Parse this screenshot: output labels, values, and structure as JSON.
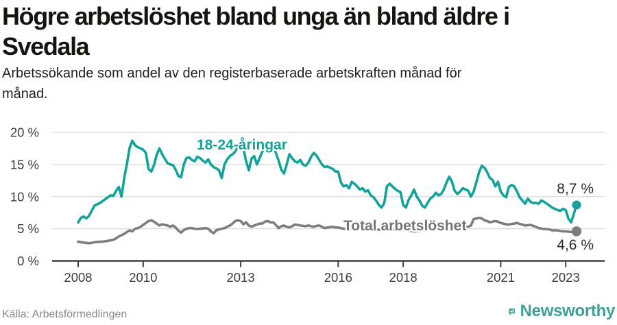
{
  "header": {
    "title_lines": [
      "Högre arbetslöshet bland unga än bland äldre i",
      "Svedala"
    ],
    "subtitle_lines": [
      "Arbetssökande som andel av den registerbaserade arbetskraften månad för",
      "månad."
    ]
  },
  "chart_data": {
    "type": "line",
    "x_unit": "month",
    "x_start": "2008-01",
    "x_end": "2023-05",
    "ylim": [
      0,
      20
    ],
    "grid": "horizontal",
    "yticks": [
      {
        "value": 0,
        "label": "0 %"
      },
      {
        "value": 5,
        "label": "5 %"
      },
      {
        "value": 10,
        "label": "10 %"
      },
      {
        "value": 15,
        "label": "15 %"
      },
      {
        "value": 20,
        "label": "20 %"
      }
    ],
    "xticks": [
      {
        "month_index": 0,
        "label": "2008"
      },
      {
        "month_index": 24,
        "label": "2010"
      },
      {
        "month_index": 60,
        "label": "2013"
      },
      {
        "month_index": 96,
        "label": "2016"
      },
      {
        "month_index": 120,
        "label": "2018"
      },
      {
        "month_index": 156,
        "label": "2021"
      },
      {
        "month_index": 180,
        "label": "2023"
      }
    ],
    "series": [
      {
        "name": "18-24-åringar",
        "color": "#11a39a",
        "end_label": "8,7 %",
        "end_value": 8.7,
        "values": [
          6.0,
          6.7,
          6.9,
          6.6,
          7.0,
          7.8,
          8.6,
          8.8,
          9.0,
          9.3,
          9.6,
          9.9,
          10.2,
          10.1,
          10.9,
          11.5,
          10.0,
          12.9,
          15.1,
          17.6,
          18.7,
          18.0,
          17.7,
          17.5,
          17.3,
          16.8,
          14.3,
          13.9,
          14.9,
          16.5,
          17.5,
          16.6,
          15.9,
          15.2,
          15.0,
          14.9,
          14.2,
          13.2,
          13.0,
          15.0,
          16.0,
          16.1,
          15.7,
          15.5,
          16.2,
          16.0,
          15.6,
          15.3,
          15.8,
          15.0,
          14.6,
          14.4,
          14.1,
          12.9,
          15.0,
          15.8,
          16.3,
          16.6,
          17.0,
          17.8,
          18.4,
          17.5,
          15.5,
          14.1,
          15.9,
          16.3,
          15.0,
          16.0,
          17.0,
          17.8,
          18.3,
          18.4,
          17.9,
          16.8,
          15.6,
          14.2,
          13.6,
          15.0,
          16.6,
          16.0,
          15.5,
          15.3,
          15.7,
          15.0,
          14.8,
          15.3,
          16.2,
          16.8,
          16.4,
          15.7,
          15.0,
          14.6,
          14.7,
          14.5,
          14.3,
          13.9,
          13.9,
          12.2,
          11.6,
          11.8,
          11.3,
          12.3,
          12.0,
          11.6,
          11.1,
          11.3,
          10.8,
          11.0,
          10.2,
          9.9,
          9.4,
          8.7,
          8.3,
          9.0,
          11.6,
          12.0,
          11.6,
          11.2,
          10.9,
          10.7,
          8.7,
          8.3,
          9.5,
          10.2,
          11.1,
          10.0,
          9.4,
          8.6,
          8.3,
          9.0,
          9.7,
          10.0,
          10.6,
          10.2,
          10.4,
          11.1,
          12.2,
          13.1,
          12.3,
          10.9,
          10.4,
          10.8,
          11.3,
          11.1,
          10.9,
          10.0,
          10.8,
          12.2,
          13.8,
          14.8,
          14.5,
          13.8,
          12.9,
          12.6,
          11.6,
          12.3,
          10.8,
          10.2,
          9.9,
          11.5,
          11.8,
          11.6,
          10.8,
          9.9,
          9.4,
          8.9,
          9.7,
          9.2,
          9.0,
          9.0,
          8.9,
          9.4,
          9.2,
          8.9,
          8.6,
          8.3,
          8.1,
          7.9,
          7.8,
          8.1,
          7.9,
          6.6,
          6.0,
          7.3,
          8.7
        ]
      },
      {
        "name": "Total arbetslöshet",
        "color": "#7d7d7d",
        "end_label": "4,6 %",
        "end_value": 4.6,
        "values": [
          3.0,
          2.9,
          2.85,
          2.8,
          2.75,
          2.8,
          2.9,
          2.95,
          3.0,
          3.0,
          3.05,
          3.1,
          3.2,
          3.3,
          3.5,
          3.8,
          4.0,
          4.2,
          4.5,
          4.75,
          4.6,
          5.0,
          5.1,
          5.3,
          5.6,
          5.9,
          6.2,
          6.3,
          6.1,
          5.8,
          5.5,
          5.7,
          5.6,
          5.5,
          5.3,
          5.5,
          5.2,
          4.7,
          4.4,
          4.8,
          5.0,
          5.1,
          5.1,
          5.0,
          4.95,
          5.0,
          5.05,
          5.1,
          5.0,
          4.6,
          4.3,
          4.75,
          4.9,
          5.0,
          5.1,
          5.3,
          5.5,
          5.8,
          6.2,
          6.3,
          6.2,
          5.7,
          6.0,
          5.5,
          5.3,
          5.5,
          5.65,
          5.8,
          5.8,
          6.1,
          6.2,
          6.0,
          6.0,
          5.6,
          5.1,
          5.4,
          5.5,
          5.3,
          5.2,
          5.4,
          5.65,
          5.6,
          5.5,
          5.45,
          5.4,
          5.5,
          5.4,
          5.3,
          5.45,
          5.5,
          5.3,
          5.1,
          5.2,
          5.25,
          5.3,
          5.2,
          5.2,
          5.1,
          5.0,
          5.0,
          4.95,
          5.0,
          5.05,
          5.0,
          4.95,
          4.9,
          4.9,
          4.95,
          5.0,
          4.95,
          4.9,
          4.85,
          4.8,
          4.85,
          4.9,
          4.95,
          4.9,
          4.85,
          4.8,
          4.8,
          4.8,
          4.75,
          4.7,
          4.65,
          4.6,
          4.65,
          4.7,
          4.75,
          4.7,
          4.75,
          4.8,
          4.85,
          4.9,
          4.9,
          4.95,
          5.0,
          5.0,
          5.1,
          5.15,
          5.1,
          5.05,
          5.1,
          5.15,
          5.2,
          5.3,
          5.5,
          6.5,
          6.6,
          6.7,
          6.6,
          6.3,
          6.2,
          6.0,
          6.1,
          6.2,
          6.1,
          5.9,
          5.8,
          5.7,
          5.65,
          5.75,
          5.8,
          5.9,
          5.75,
          5.65,
          5.5,
          5.55,
          5.6,
          5.45,
          5.3,
          5.1,
          5.05,
          4.95,
          4.95,
          4.9,
          4.75,
          4.75,
          4.75,
          4.65,
          4.6,
          4.6,
          4.55,
          4.5,
          4.5,
          4.6
        ]
      }
    ]
  },
  "footer": {
    "source": "Källa: Arbetsförmedlingen",
    "brand": "Newsworthy"
  },
  "colors": {
    "accent_teal": "#11a39a",
    "line_gray": "#7d7d7d",
    "logo_teal": "#3f9e96",
    "grid": "#d9d9d9",
    "axis": "#3f3f3f"
  }
}
